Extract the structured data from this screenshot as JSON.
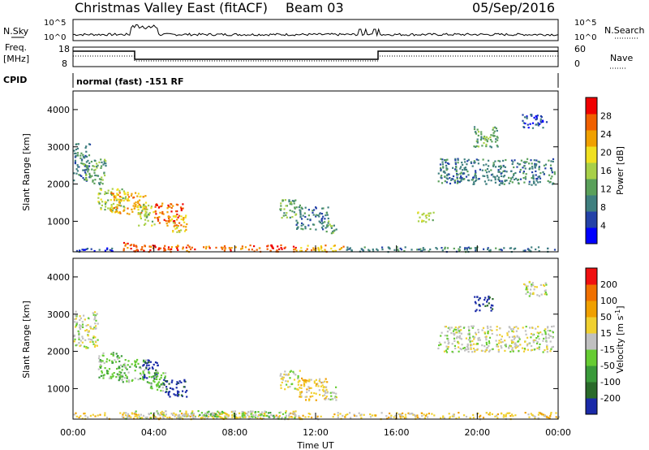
{
  "header": {
    "title": "Christmas Valley East (fitACF)",
    "beam": "Beam 03",
    "date": "05/Sep/2016"
  },
  "summary_panels": {
    "nsky_label": "N.Sky",
    "nsky_ticks": [
      "10^5",
      "10^0"
    ],
    "nsearch_label": "N.Search",
    "nsearch_ticks": [
      "10^5",
      "10^0"
    ],
    "freq_label_1": "Freq.",
    "freq_label_2": "[MHz]",
    "freq_ticks": [
      "18",
      "8"
    ],
    "nave_label": "Nave",
    "nave_ticks": [
      "60",
      "0"
    ],
    "cpid_label": "CPID",
    "cpid_text": "normal (fast) -151 RF"
  },
  "colors": {
    "power_scale": [
      "#0000ff",
      "#2442a8",
      "#3f7f7f",
      "#5aa05a",
      "#a8d048",
      "#f0e020",
      "#f0a000",
      "#f06000",
      "#f00000"
    ],
    "velocity_scale": [
      "#1a2aa8",
      "#2a6a2a",
      "#3a9a3a",
      "#66cc33",
      "#c0c0c0",
      "#f0d030",
      "#f0a000",
      "#f07000",
      "#f01010"
    ]
  },
  "chart_data": [
    {
      "type": "heatmap",
      "name": "power",
      "ylabel": "Slant Range [km]",
      "xlabel": "",
      "x_range": [
        0,
        24
      ],
      "ylim": [
        180,
        4500
      ],
      "y_ticks": [
        "1000",
        "2000",
        "3000",
        "4000"
      ],
      "x_ticks": [
        "00:00",
        "04:00",
        "08:00",
        "12:00",
        "16:00",
        "20:00",
        "00:00"
      ],
      "colorbar": {
        "label": "Power [dB]",
        "ticks": [
          "28",
          "24",
          "20",
          "16",
          "12",
          "8",
          "4"
        ],
        "range": [
          0,
          30
        ]
      },
      "regions": [
        {
          "t0": 0.0,
          "t1": 0.8,
          "r0": 2100,
          "r1": 3100,
          "c": 2
        },
        {
          "t0": 0.5,
          "t1": 1.6,
          "r0": 2000,
          "r1": 2700,
          "c": 3
        },
        {
          "t0": 1.2,
          "t1": 2.6,
          "r0": 1300,
          "r1": 1900,
          "c": 4
        },
        {
          "t0": 1.8,
          "t1": 3.6,
          "r0": 1200,
          "r1": 1800,
          "c": 6
        },
        {
          "t0": 3.2,
          "t1": 4.0,
          "r0": 900,
          "r1": 1500,
          "c": 4
        },
        {
          "t0": 4.0,
          "t1": 5.4,
          "r0": 900,
          "r1": 1500,
          "c": 7
        },
        {
          "t0": 4.8,
          "t1": 5.6,
          "r0": 700,
          "r1": 1200,
          "c": 5
        },
        {
          "t0": 10.2,
          "t1": 11.2,
          "r0": 1100,
          "r1": 1600,
          "c": 3
        },
        {
          "t0": 11.0,
          "t1": 12.6,
          "r0": 800,
          "r1": 1400,
          "c": 2
        },
        {
          "t0": 12.5,
          "t1": 13.0,
          "r0": 700,
          "r1": 1100,
          "c": 3
        },
        {
          "t0": 17.0,
          "t1": 17.8,
          "r0": 1000,
          "r1": 1300,
          "c": 4
        },
        {
          "t0": 19.8,
          "t1": 21.0,
          "r0": 3000,
          "r1": 3600,
          "c": 3
        },
        {
          "t0": 18.0,
          "t1": 23.8,
          "r0": 2000,
          "r1": 2700,
          "c": 2
        },
        {
          "t0": 22.2,
          "t1": 23.4,
          "r0": 3500,
          "r1": 3900,
          "c": 1
        },
        {
          "t0": 2.4,
          "t1": 3.2,
          "r0": 200,
          "r1": 450,
          "c": 7
        },
        {
          "t0": 3.0,
          "t1": 11.0,
          "r0": 200,
          "r1": 380,
          "c": 7
        },
        {
          "t0": 11.0,
          "t1": 13.5,
          "r0": 200,
          "r1": 380,
          "c": 6
        },
        {
          "t0": 13.5,
          "t1": 24.0,
          "r0": 200,
          "r1": 330,
          "c": 2
        },
        {
          "t0": 0.0,
          "t1": 2.4,
          "r0": 200,
          "r1": 300,
          "c": 1
        }
      ]
    },
    {
      "type": "heatmap",
      "name": "velocity",
      "ylabel": "Slant Range [km]",
      "xlabel": "Time UT",
      "x_range": [
        0,
        24
      ],
      "ylim": [
        180,
        4500
      ],
      "y_ticks": [
        "1000",
        "2000",
        "3000",
        "4000"
      ],
      "x_ticks": [
        "00:00",
        "04:00",
        "08:00",
        "12:00",
        "16:00",
        "20:00",
        "00:00"
      ],
      "colorbar": {
        "label": "Velocity [m s",
        "label_sup": "-1",
        "label_end": "]",
        "ticks": [
          "200",
          "100",
          "50",
          "15",
          "-15",
          "-50",
          "-100",
          "-200"
        ],
        "range": [
          -250,
          250
        ]
      },
      "regions": [
        {
          "t0": 0.0,
          "t1": 1.2,
          "r0": 2100,
          "r1": 3100,
          "c": 4
        },
        {
          "t0": 1.2,
          "t1": 2.4,
          "r0": 1300,
          "r1": 2000,
          "c": 3
        },
        {
          "t0": 2.2,
          "t1": 3.6,
          "r0": 1200,
          "r1": 1800,
          "c": 3
        },
        {
          "t0": 3.4,
          "t1": 4.2,
          "r0": 1300,
          "r1": 1800,
          "c": 0
        },
        {
          "t0": 3.6,
          "t1": 4.6,
          "r0": 900,
          "r1": 1500,
          "c": 3
        },
        {
          "t0": 4.4,
          "t1": 5.6,
          "r0": 800,
          "r1": 1300,
          "c": 0
        },
        {
          "t0": 10.2,
          "t1": 11.2,
          "r0": 1000,
          "r1": 1500,
          "c": 4
        },
        {
          "t0": 11.0,
          "t1": 12.6,
          "r0": 700,
          "r1": 1300,
          "c": 5
        },
        {
          "t0": 12.4,
          "t1": 13.0,
          "r0": 700,
          "r1": 1100,
          "c": 4
        },
        {
          "t0": 19.8,
          "t1": 20.8,
          "r0": 3100,
          "r1": 3500,
          "c": 0
        },
        {
          "t0": 18.0,
          "t1": 23.8,
          "r0": 2000,
          "r1": 2700,
          "c": 4
        },
        {
          "t0": 22.2,
          "t1": 23.4,
          "r0": 3500,
          "r1": 3900,
          "c": 4
        },
        {
          "t0": 0.0,
          "t1": 24.0,
          "r0": 200,
          "r1": 380,
          "c": 5
        },
        {
          "t0": 2.4,
          "t1": 11.0,
          "r0": 200,
          "r1": 420,
          "c": 4
        },
        {
          "t0": 6.0,
          "t1": 10.0,
          "r0": 250,
          "r1": 420,
          "c": 3
        }
      ]
    }
  ]
}
